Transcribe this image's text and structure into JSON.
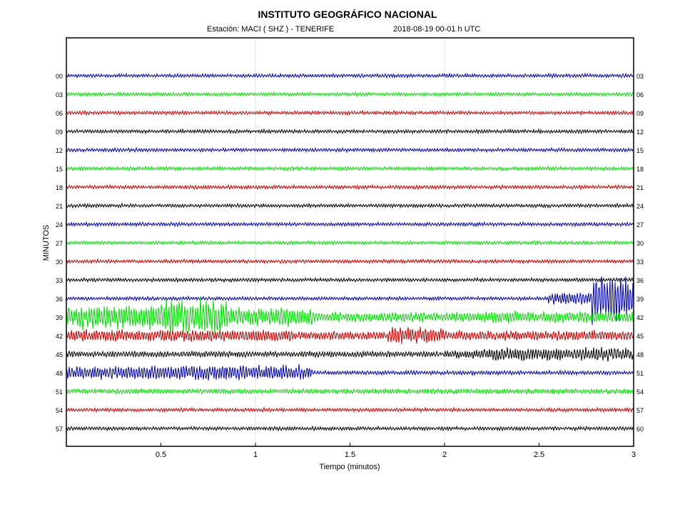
{
  "chart_data": {
    "type": "line",
    "title": "INSTITUTO GEOGRÁFICO NACIONAL",
    "subtitle_station": "Estación:  MACI ( SHZ ) - TENERIFE",
    "subtitle_date": "2018-08-19  00-01 h UTC",
    "xlabel": "Tiempo (minutos)",
    "ylabel": "MINUTOS",
    "xlim": [
      0,
      3
    ],
    "x_ticks": [
      "0.5",
      "1",
      "1.5",
      "2",
      "2.5",
      "3"
    ],
    "x_tick_values": [
      0.5,
      1,
      1.5,
      2,
      2.5,
      3
    ],
    "left_labels": [
      "00",
      "03",
      "06",
      "09",
      "12",
      "15",
      "18",
      "21",
      "24",
      "27",
      "30",
      "33",
      "36",
      "39",
      "42",
      "45",
      "48",
      "51",
      "54",
      "57"
    ],
    "right_labels": [
      "03",
      "06",
      "09",
      "12",
      "15",
      "18",
      "21",
      "24",
      "27",
      "30",
      "33",
      "36",
      "39",
      "42",
      "45",
      "48",
      "51",
      "54",
      "57",
      "60"
    ],
    "trace_colors": [
      "#0000a0",
      "#00dd00",
      "#c00000",
      "#000000"
    ],
    "base_amplitude": 2.2,
    "events": [
      {
        "trace": 12,
        "segments": [
          [
            2.55,
            2.78,
            8
          ],
          [
            2.78,
            3.0,
            30
          ]
        ]
      },
      {
        "trace": 13,
        "segments": [
          [
            0,
            0.5,
            14
          ],
          [
            0.5,
            0.85,
            22
          ],
          [
            0.85,
            1.3,
            11
          ],
          [
            1.3,
            2.2,
            6
          ],
          [
            2.2,
            3.0,
            7
          ]
        ]
      },
      {
        "trace": 14,
        "segments": [
          [
            0,
            1.2,
            7
          ],
          [
            1.2,
            1.7,
            5
          ],
          [
            1.7,
            2.0,
            10
          ],
          [
            2.0,
            3.0,
            6
          ]
        ]
      },
      {
        "trace": 15,
        "segments": [
          [
            0,
            2.0,
            3.5
          ],
          [
            2.0,
            2.2,
            5
          ],
          [
            2.2,
            3.0,
            8
          ]
        ]
      },
      {
        "trace": 16,
        "segments": [
          [
            0,
            0.4,
            8
          ],
          [
            0.4,
            1.3,
            9
          ],
          [
            1.3,
            3.0,
            2.5
          ]
        ]
      },
      {
        "trace": 17,
        "segments": [
          [
            0,
            3.0,
            3
          ]
        ]
      }
    ]
  }
}
